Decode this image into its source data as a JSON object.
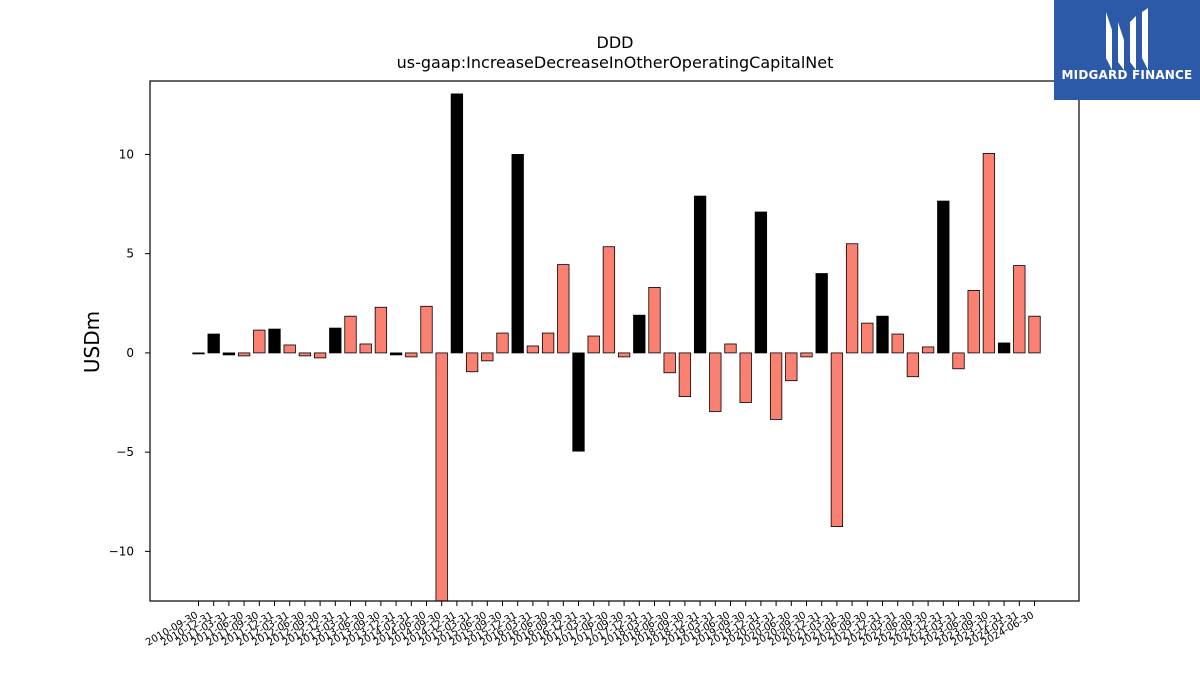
{
  "logo": {
    "text": "MIDGARD FINANCE",
    "bg_color": "#2c5aa8"
  },
  "chart_data": {
    "type": "bar",
    "title": "DDD",
    "subtitle": "us-gaap:IncreaseDecreaseInOtherOperatingCapitalNet",
    "ylabel": "USDm",
    "xlabel": "",
    "ylim": [
      -12.5,
      13.7
    ],
    "yticks": [
      -10,
      -5,
      0,
      5,
      10
    ],
    "grid": false,
    "categories": [
      "2010-09-30",
      "2010-12-31",
      "2011-03-31",
      "2011-06-30",
      "2011-09-30",
      "2011-12-31",
      "2012-03-31",
      "2012-06-30",
      "2012-09-30",
      "2012-12-31",
      "2013-03-31",
      "2013-06-30",
      "2013-09-30",
      "2013-12-31",
      "2014-03-31",
      "2014-06-30",
      "2014-09-30",
      "2014-12-31",
      "2015-03-31",
      "2015-06-30",
      "2015-09-30",
      "2015-12-31",
      "2016-03-31",
      "2016-06-30",
      "2016-09-30",
      "2016-12-31",
      "2017-03-31",
      "2017-06-30",
      "2017-09-30",
      "2017-12-31",
      "2018-03-31",
      "2018-06-30",
      "2018-09-30",
      "2018-12-31",
      "2019-03-31",
      "2019-06-30",
      "2019-09-30",
      "2019-12-31",
      "2020-03-31",
      "2020-06-30",
      "2020-09-30",
      "2020-12-31",
      "2021-03-31",
      "2021-06-30",
      "2021-09-30",
      "2021-12-31",
      "2022-03-31",
      "2022-06-30",
      "2022-09-30",
      "2022-12-31",
      "2023-03-31",
      "2023-06-30",
      "2023-09-30",
      "2023-12-31",
      "2024-03-31",
      "2024-06-30"
    ],
    "values": [
      -0.05,
      0.95,
      -0.1,
      -0.15,
      1.15,
      1.2,
      0.4,
      -0.15,
      -0.25,
      1.25,
      1.85,
      0.45,
      2.3,
      -0.1,
      -0.2,
      2.35,
      -12.5,
      13.05,
      -0.95,
      -0.4,
      1.0,
      10.0,
      0.35,
      1.0,
      4.45,
      -4.95,
      0.85,
      5.35,
      -0.2,
      1.9,
      3.3,
      -1.0,
      -2.2,
      7.9,
      -2.95,
      0.45,
      -2.5,
      7.1,
      -3.35,
      -1.4,
      -0.2,
      4.0,
      -8.75,
      5.5,
      1.5,
      1.85,
      0.95,
      -1.2,
      0.3,
      7.65,
      -0.8,
      3.15,
      10.05,
      0.5,
      4.4,
      1.85
    ],
    "colors": [
      "#000000",
      "#000000",
      "#000000",
      "#fa8072",
      "#fa8072",
      "#000000",
      "#fa8072",
      "#fa8072",
      "#fa8072",
      "#000000",
      "#fa8072",
      "#fa8072",
      "#fa8072",
      "#000000",
      "#fa8072",
      "#fa8072",
      "#fa8072",
      "#000000",
      "#fa8072",
      "#fa8072",
      "#fa8072",
      "#000000",
      "#fa8072",
      "#fa8072",
      "#fa8072",
      "#000000",
      "#fa8072",
      "#fa8072",
      "#fa8072",
      "#000000",
      "#fa8072",
      "#fa8072",
      "#fa8072",
      "#000000",
      "#fa8072",
      "#fa8072",
      "#fa8072",
      "#000000",
      "#fa8072",
      "#fa8072",
      "#fa8072",
      "#000000",
      "#fa8072",
      "#fa8072",
      "#fa8072",
      "#000000",
      "#fa8072",
      "#fa8072",
      "#fa8072",
      "#000000",
      "#fa8072",
      "#fa8072",
      "#fa8072",
      "#000000",
      "#fa8072",
      "#fa8072"
    ]
  }
}
